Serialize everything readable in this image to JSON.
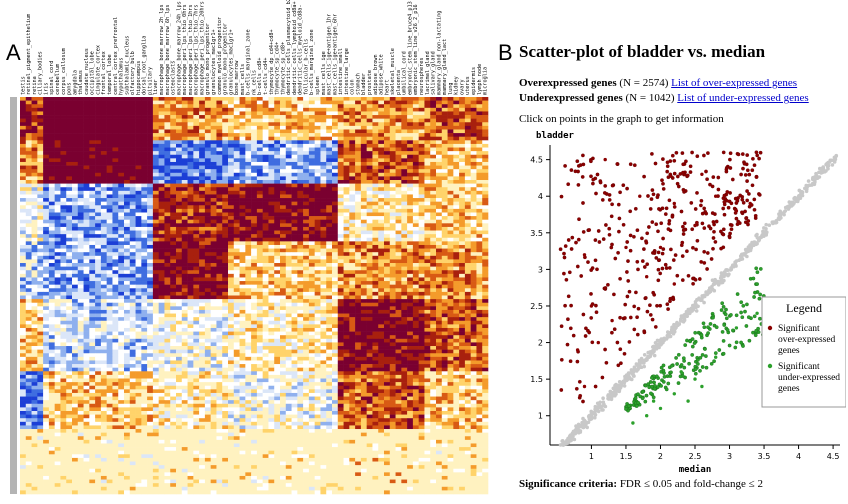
{
  "panel_a": {
    "letter": "A",
    "tissue_labels": [
      "testis",
      "retinal_pigment_epithelium",
      "retina",
      "ciliary_bodies",
      "iris",
      "spinal_cord",
      "cerebellum",
      "corpus_callosum",
      "pons",
      "amygdala",
      "thalamus",
      "caudate_nucleus",
      "occipital_lobe",
      "cingulate_cortex",
      "frontal_cortex",
      "temporal_lobe",
      "central_cortex_prefrontal",
      "hypothalamus",
      "subthalamic_nucleus",
      "olfactory_bulb",
      "hippocampus",
      "dorsal_root_ganglia",
      "pituitary",
      "liver",
      "macrophage_bone_marrow_2h_lps",
      "macrophage_bone_marrow_6h_lps",
      "osteoclasts",
      "macrophage_bone_marrow_24h_lps",
      "macrophage_peri_lps_thio_0hrs",
      "macrophage_peri_lps_thio_1hrs",
      "macrophage_peri_lps_thio_7hrs",
      "macrophage_peri_lps_thio_20hrs",
      "granulo_mono_progenitor",
      "granulocytes_mac1gr1+",
      "common_myeloid_progenitor",
      "granulo_mono_progenitor",
      "granulocytes_mac1gr1+",
      "bone_marrow",
      "mast_cells",
      "b-cells_marginal_zone",
      "nk_cells",
      "b-cells_cd8+",
      "t-cells_cd4+",
      "thymocyte_dp_cd4+cd8+",
      "thymocyte_sp_cd4+",
      "thymocyte_sp_cd8+",
      "dendritic_cells_plasmacytoid_b220+",
      "dendritic_cells_lymphoid_cd8a+",
      "dendritic_cells_myeloid_cd8a-",
      "follicular_b-cells",
      "b-cells_marginal_zone",
      "spleen",
      "mast_cells_ige",
      "mast_cells_ige+antigen_1hr",
      "mast_cells_ige+antigen_6hr",
      "intestine_small",
      "intestine_large",
      "colon",
      "stomach",
      "bladder",
      "prostate",
      "adipose_brown",
      "adipose_white",
      "heart",
      "skeletal_muscle",
      "placenta",
      "umbilical_cord",
      "embryonic_stem_line_bruce4_p13",
      "embryonic_stem_line_v26_2_p16",
      "neurospheres",
      "lacrimal_gland",
      "salivary_gland",
      "mammary_gland_non-lactating",
      "mammary_gland_lact",
      "lung",
      "kidney",
      "ovary",
      "uterus",
      "epidermis",
      "lymph_node",
      "microglia"
    ]
  },
  "panel_b": {
    "letter": "B",
    "title": "Scatter-plot of bladder vs. median",
    "overexpressed_label": "Overexpressed genes",
    "overexpressed_count": "(N = 2574)",
    "overexpressed_link": "List of over-expressed genes",
    "underexpressed_label": "Underexpressed genes",
    "underexpressed_count": "(N = 1042)",
    "underexpressed_link": "List of under-expressed genes",
    "click_hint": "Click on points in the graph to get information",
    "criteria_label": "Significance criteria:",
    "criteria_value": "FDR ≤ 0.05 and fold-change ≤ 2",
    "legend_title": "Legend",
    "legend_over_lines": [
      "Significant",
      "over-expressed",
      "genes"
    ],
    "legend_under_lines": [
      "Significant",
      "under-expressed",
      "genes"
    ]
  },
  "colors": {
    "over": "#8b0000",
    "under": "#2ca02c",
    "neutral": "#c8c8c8",
    "link": "#0000cc",
    "heat_high": "#7a0030",
    "heat_low": "#1c3fd6"
  },
  "chart_data": {
    "type": "scatter",
    "xlabel": "median",
    "ylabel": "bladder",
    "xlim": [
      0.4,
      4.6
    ],
    "ylim": [
      0.6,
      4.7
    ],
    "x_ticks": [
      "1",
      "1.5",
      "2",
      "2.5",
      "3",
      "3.5",
      "4",
      "4.5"
    ],
    "y_ticks": [
      "1",
      "1.5",
      "2",
      "2.5",
      "3",
      "3.5",
      "4",
      "4.5"
    ],
    "series": [
      {
        "name": "Significant over-expressed genes",
        "count": 2574,
        "sample_points": [
          [
            1.2,
            4.5
          ],
          [
            1.7,
            4.0
          ],
          [
            2.2,
            3.9
          ],
          [
            0.9,
            3.2
          ],
          [
            1.0,
            2.5
          ],
          [
            1.5,
            3.3
          ],
          [
            1.8,
            2.9
          ],
          [
            2.5,
            3.6
          ],
          [
            2.8,
            4.0
          ],
          [
            3.1,
            3.8
          ],
          [
            0.8,
            1.9
          ],
          [
            1.3,
            2.3
          ],
          [
            2.0,
            3.3
          ],
          [
            2.6,
            4.3
          ],
          [
            3.3,
            3.9
          ],
          [
            2.2,
            2.8
          ],
          [
            1.1,
            2.0
          ],
          [
            0.9,
            1.4
          ]
        ]
      },
      {
        "name": "Significant under-expressed genes",
        "count": 1042,
        "sample_points": [
          [
            1.8,
            1.0
          ],
          [
            2.2,
            1.3
          ],
          [
            2.5,
            1.5
          ],
          [
            2.8,
            1.8
          ],
          [
            3.1,
            2.2
          ],
          [
            1.6,
            0.9
          ],
          [
            2.0,
            1.1
          ],
          [
            2.4,
            1.2
          ],
          [
            3.4,
            2.4
          ],
          [
            2.6,
            1.4
          ],
          [
            1.9,
            1.2
          ],
          [
            2.3,
            1.6
          ]
        ]
      }
    ]
  }
}
